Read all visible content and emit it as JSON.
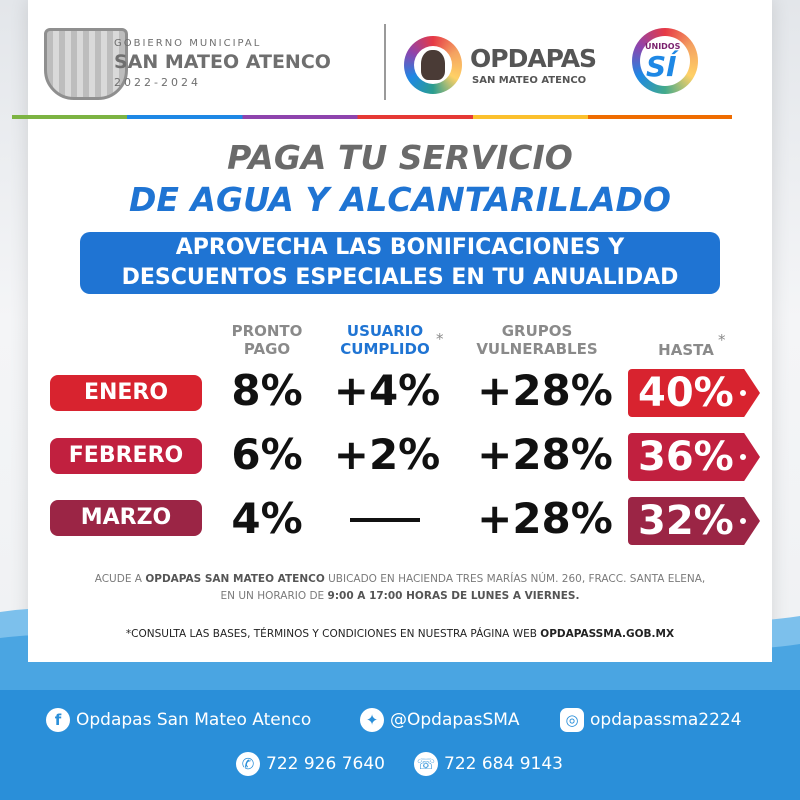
{
  "header": {
    "gov_small": "GOBIERNO MUNICIPAL",
    "gov_name": "SAN MATEO ATENCO",
    "gov_years": "2022-2024",
    "opdapas_name": "OPDAPAS",
    "opdapas_sub": "SAN MATEO ATENCO",
    "unidos_small": "UNIDOS",
    "unidos_si": "SÍ"
  },
  "titles": {
    "line1": "PAGA TU SERVICIO",
    "line2": "DE AGUA Y ALCANTARILLADO",
    "banner_line1": "APROVECHA LAS BONIFICACIONES Y",
    "banner_line2": "DESCUENTOS ESPECIALES EN TU ANUALIDAD"
  },
  "columns": {
    "pronto_1": "PRONTO",
    "pronto_2": "PAGO",
    "usuario_1": "USUARIO",
    "usuario_2": "CUMPLIDO",
    "grupos_1": "GRUPOS",
    "grupos_2": "VULNERABLES",
    "hasta": "HASTA",
    "asterisk": "*"
  },
  "rows": [
    {
      "month": "ENERO",
      "pronto": "8%",
      "usuario": "+4%",
      "grupos": "+28%",
      "hasta": "40%",
      "color": "#d8232f"
    },
    {
      "month": "FEBRERO",
      "pronto": "6%",
      "usuario": "+2%",
      "grupos": "+28%",
      "hasta": "36%",
      "color": "#c1203f"
    },
    {
      "month": "MARZO",
      "pronto": "4%",
      "usuario": "—",
      "grupos": "+28%",
      "hasta": "32%",
      "color": "#9b2545"
    }
  ],
  "info": {
    "prefix": "ACUDE A",
    "org": "OPDAPAS SAN MATEO ATENCO",
    "address": "UBICADO EN HACIENDA TRES MARÍAS NÚM. 260, FRACC. SANTA ELENA,",
    "schedule_prefix": "EN UN HORARIO DE",
    "schedule": "9:00 A 17:00 HORAS DE LUNES A VIERNES."
  },
  "terms": {
    "text": "*CONSULTA LAS BASES, TÉRMINOS Y CONDICIONES EN NUESTRA PÁGINA WEB",
    "site": "OPDAPASSMA.GOB.MX"
  },
  "footer": {
    "facebook": "Opdapas San Mateo Atenco",
    "twitter": "@OpdapasSMA",
    "instagram": "opdapassma2224",
    "phone": "722 926 7640",
    "whatsapp": "722 684 9143"
  },
  "icons": {
    "facebook": "facebook-icon",
    "twitter": "twitter-icon",
    "instagram": "instagram-icon",
    "phone": "phone-icon",
    "whatsapp": "whatsapp-icon"
  }
}
